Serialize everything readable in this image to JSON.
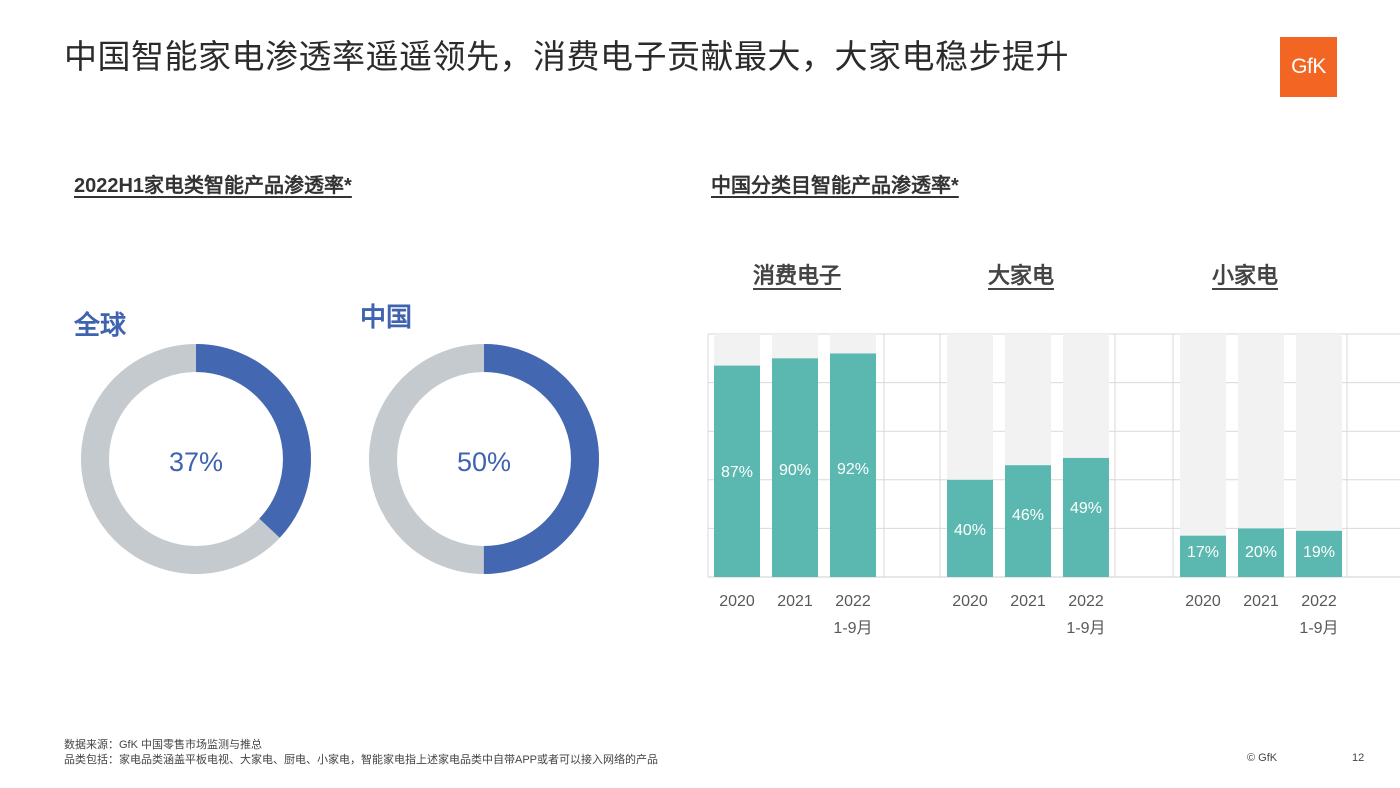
{
  "header": {
    "title": "中国智能家电渗透率遥遥领先，消费电子贡献最大，大家电稳步提升",
    "logo_text": "GfK"
  },
  "left_section": {
    "title": "2022H1家电类智能产品渗透率*"
  },
  "right_section": {
    "title": "中国分类目智能产品渗透率*"
  },
  "chart_data": [
    {
      "type": "pie",
      "subtype": "donut",
      "title": "2022H1家电类智能产品渗透率*",
      "charts": [
        {
          "label": "全球",
          "value": 37,
          "value_label": "37%"
        },
        {
          "label": "中国",
          "value": 50,
          "value_label": "50%"
        }
      ],
      "colors": {
        "filled": "#4467b2",
        "remainder": "#c5cacf",
        "label": "#3f63b0"
      }
    },
    {
      "type": "bar",
      "title": "中国分类目智能产品渗透率*",
      "ylim": [
        0,
        100
      ],
      "grid": true,
      "groups": [
        {
          "name": "消费电子",
          "categories": [
            "2020",
            "2021",
            "2022\n1-9月"
          ],
          "values": [
            87,
            90,
            92
          ],
          "labels": [
            "87%",
            "90%",
            "92%"
          ]
        },
        {
          "name": "大家电",
          "categories": [
            "2020",
            "2021",
            "2022\n1-9月"
          ],
          "values": [
            40,
            46,
            49
          ],
          "labels": [
            "40%",
            "46%",
            "49%"
          ]
        },
        {
          "name": "小家电",
          "categories": [
            "2020",
            "2021",
            "2022\n1-9月"
          ],
          "values": [
            17,
            20,
            19
          ],
          "labels": [
            "17%",
            "20%",
            "19%"
          ]
        }
      ],
      "colors": {
        "bar": "#5bb8b0",
        "background_bar": "#f2f2f2",
        "grid": "#d9d9d9"
      }
    }
  ],
  "footer": {
    "source": "数据来源：GfK 中国零售市场监测与推总",
    "scope": "品类包括：家电品类涵盖平板电视、大家电、厨电、小家电，智能家电指上述家电品类中自带APP或者可以接入网络的产品",
    "copyright": "© GfK",
    "page_number": "12"
  }
}
